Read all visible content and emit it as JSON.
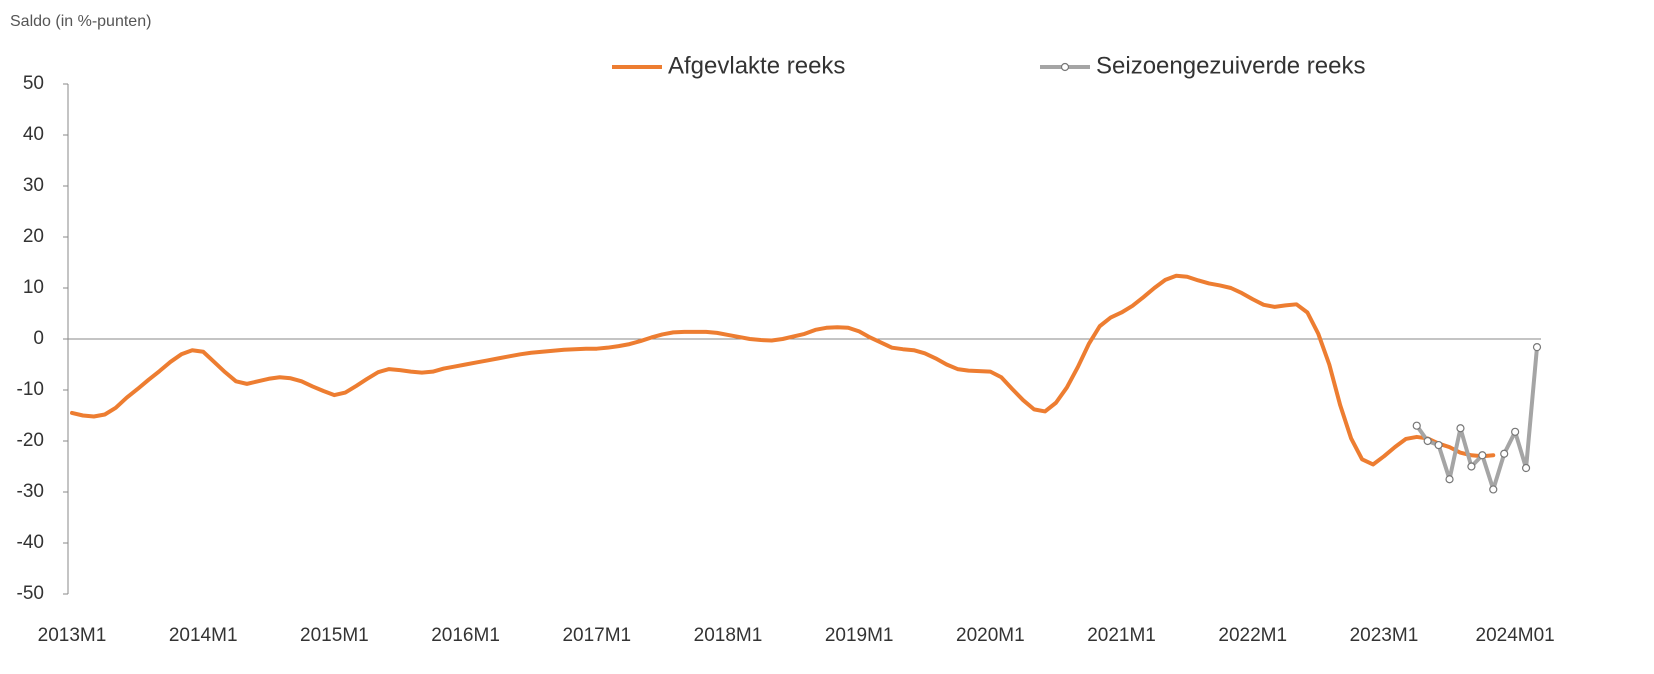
{
  "chart_data": {
    "type": "line",
    "y_label": "Saldo (in %-punten)",
    "categories": [
      "2013M1",
      null,
      null,
      null,
      null,
      null,
      null,
      null,
      null,
      null,
      null,
      null,
      "2014M1",
      null,
      null,
      null,
      null,
      null,
      null,
      null,
      null,
      null,
      null,
      null,
      "2015M1",
      null,
      null,
      null,
      null,
      null,
      null,
      null,
      null,
      null,
      null,
      null,
      "2016M1",
      null,
      null,
      null,
      null,
      null,
      null,
      null,
      null,
      null,
      null,
      null,
      "2017M1",
      null,
      null,
      null,
      null,
      null,
      null,
      null,
      null,
      null,
      null,
      null,
      "2018M1",
      null,
      null,
      null,
      null,
      null,
      null,
      null,
      null,
      null,
      null,
      null,
      "2019M1",
      null,
      null,
      null,
      null,
      null,
      null,
      null,
      null,
      null,
      null,
      null,
      "2020M1",
      null,
      null,
      null,
      null,
      null,
      null,
      null,
      null,
      null,
      null,
      null,
      "2021M1",
      null,
      null,
      null,
      null,
      null,
      null,
      null,
      null,
      null,
      null,
      null,
      "2022M1",
      null,
      null,
      null,
      null,
      null,
      null,
      null,
      null,
      null,
      null,
      null,
      "2023M1",
      null,
      null,
      null,
      null,
      null,
      null,
      null,
      null,
      null,
      null,
      null,
      "2024M01",
      null,
      null
    ],
    "series": [
      {
        "name": "Afgevlakte reeks",
        "color": "#ed7d31",
        "markers": false,
        "values": [
          -14.5,
          -15,
          -15.2,
          -14.8,
          -13.5,
          -11.5,
          -9.8,
          -8,
          -6.3,
          -4.5,
          -3,
          -2.2,
          -2.5,
          -4.5,
          -6.5,
          -8.3,
          -8.8,
          -8.3,
          -7.8,
          -7.5,
          -7.7,
          -8.3,
          -9.3,
          -10.2,
          -11,
          -10.5,
          -9.2,
          -7.8,
          -6.5,
          -5.9,
          -6.1,
          -6.4,
          -6.6,
          -6.4,
          -5.8,
          -5.4,
          -5,
          -4.6,
          -4.2,
          -3.8,
          -3.4,
          -3,
          -2.7,
          -2.5,
          -2.3,
          -2.1,
          -2,
          -1.9,
          -1.9,
          -1.7,
          -1.4,
          -1,
          -0.4,
          0.3,
          0.9,
          1.3,
          1.4,
          1.4,
          1.4,
          1.2,
          0.8,
          0.4,
          0,
          -0.2,
          -0.3,
          0,
          0.5,
          1,
          1.8,
          2.2,
          2.3,
          2.2,
          1.5,
          0.3,
          -0.7,
          -1.7,
          -2,
          -2.2,
          -2.8,
          -3.8,
          -5,
          -5.9,
          -6.2,
          -6.3,
          -6.4,
          -7.5,
          -9.8,
          -12,
          -13.8,
          -14.2,
          -12.5,
          -9.5,
          -5.5,
          -1,
          2.5,
          4.2,
          5.2,
          6.5,
          8.2,
          10,
          11.6,
          12.4,
          12.2,
          11.5,
          10.9,
          10.5,
          10,
          9,
          7.8,
          6.7,
          6.3,
          6.6,
          6.8,
          5.2,
          1,
          -5,
          -13,
          -19.5,
          -23.6,
          -24.6,
          -23,
          -21.2,
          -19.6,
          -19.2,
          -19.5,
          -20.5,
          -21.2,
          -22.3,
          -22.8,
          -23,
          -22.8,
          null,
          null,
          null,
          null
        ]
      },
      {
        "name": "Seizoengezuiverde reeks",
        "color": "#a5a5a5",
        "markers": true,
        "values": [
          null,
          null,
          null,
          null,
          null,
          null,
          null,
          null,
          null,
          null,
          null,
          null,
          null,
          null,
          null,
          null,
          null,
          null,
          null,
          null,
          null,
          null,
          null,
          null,
          null,
          null,
          null,
          null,
          null,
          null,
          null,
          null,
          null,
          null,
          null,
          null,
          null,
          null,
          null,
          null,
          null,
          null,
          null,
          null,
          null,
          null,
          null,
          null,
          null,
          null,
          null,
          null,
          null,
          null,
          null,
          null,
          null,
          null,
          null,
          null,
          null,
          null,
          null,
          null,
          null,
          null,
          null,
          null,
          null,
          null,
          null,
          null,
          null,
          null,
          null,
          null,
          null,
          null,
          null,
          null,
          null,
          null,
          null,
          null,
          null,
          null,
          null,
          null,
          null,
          null,
          null,
          null,
          null,
          null,
          null,
          null,
          null,
          null,
          null,
          null,
          null,
          null,
          null,
          null,
          null,
          null,
          null,
          null,
          null,
          null,
          null,
          null,
          null,
          null,
          null,
          null,
          null,
          null,
          null,
          null,
          null,
          null,
          null,
          -17,
          -20,
          -20.8,
          -27.5,
          -17.5,
          -25,
          -22.8,
          -29.5,
          -22.5,
          -18.2,
          -25.3,
          -1.6
        ]
      }
    ],
    "ylim": [
      -50,
      50
    ],
    "yticks": [
      -50,
      -40,
      -30,
      -20,
      -10,
      0,
      10,
      20,
      30,
      40,
      50
    ]
  }
}
